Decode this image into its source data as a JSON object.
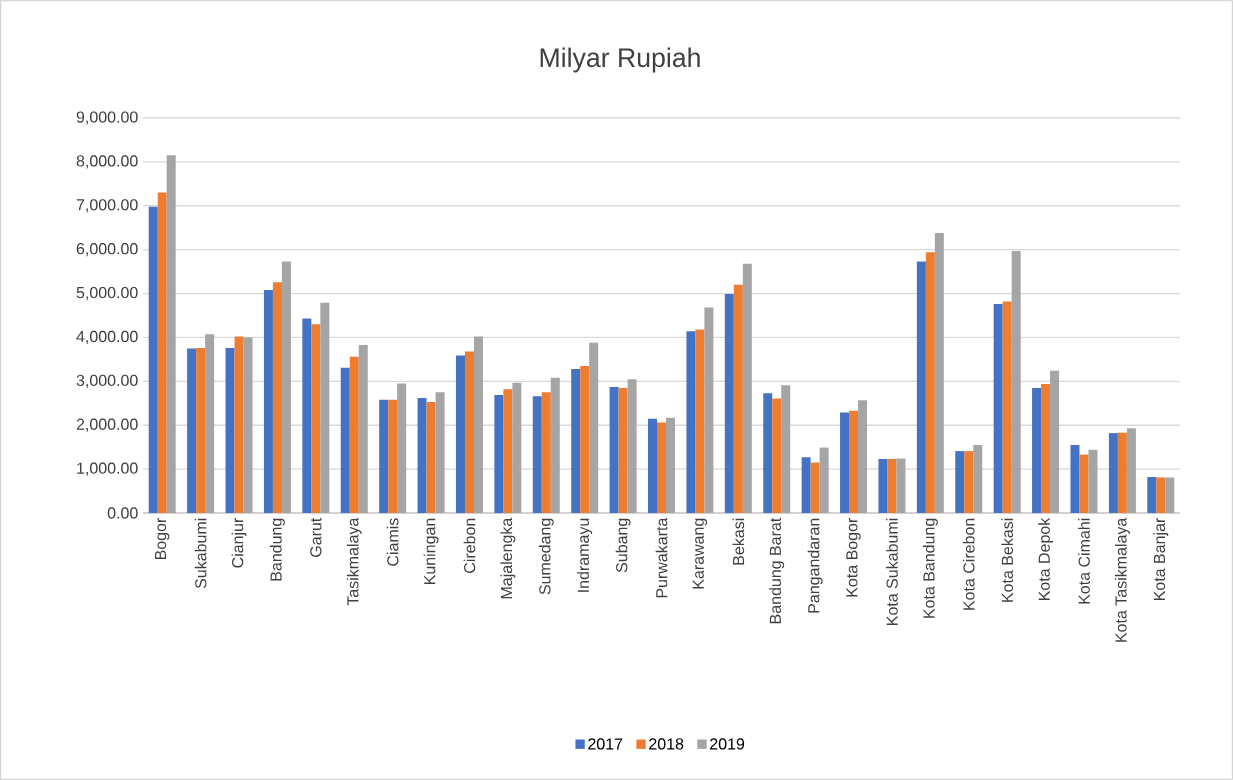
{
  "chart_data": {
    "type": "bar",
    "title": "Milyar Rupiah",
    "categories": [
      "Bogor",
      "Sukabumi",
      "Cianjur",
      "Bandung",
      "Garut",
      "Tasikmalaya",
      "Ciamis",
      "Kuningan",
      "Cirebon",
      "Majalengka",
      "Sumedang",
      "Indramayu",
      "Subang",
      "Purwakarta",
      "Karawang",
      "Bekasi",
      "Bandung Barat",
      "Pangandaran",
      "Kota Bogor",
      "Kota Sukabumi",
      "Kota Bandung",
      "Kota Cirebon",
      "Kota Bekasi",
      "Kota Depok",
      "Kota Cimahi",
      "Kota Tasikmalaya",
      "Kota Banjar"
    ],
    "series": [
      {
        "name": "2017",
        "color": "#4472c4",
        "values": [
          6980,
          3750,
          3760,
          5080,
          4430,
          3310,
          2580,
          2620,
          3590,
          2690,
          2660,
          3280,
          2870,
          2150,
          4140,
          4990,
          2730,
          1270,
          2290,
          1230,
          5730,
          1410,
          4760,
          2850,
          1550,
          1820,
          820
        ]
      },
      {
        "name": "2018",
        "color": "#ed7d31",
        "values": [
          7300,
          3760,
          4020,
          5260,
          4300,
          3560,
          2580,
          2530,
          3680,
          2820,
          2750,
          3350,
          2850,
          2060,
          4180,
          5200,
          2610,
          1150,
          2330,
          1230,
          5940,
          1410,
          4820,
          2940,
          1330,
          1830,
          810
        ]
      },
      {
        "name": "2019",
        "color": "#a5a5a5",
        "values": [
          8150,
          4070,
          4000,
          5730,
          4790,
          3830,
          2950,
          2750,
          4020,
          2970,
          3080,
          3880,
          3050,
          2170,
          4680,
          5680,
          2910,
          1490,
          2570,
          1240,
          6380,
          1550,
          5970,
          3240,
          1440,
          1930,
          810
        ]
      }
    ],
    "ylim": [
      0,
      9000
    ],
    "yticks": [
      {
        "value": 0,
        "label": "0.00"
      },
      {
        "value": 1000,
        "label": "1,000.00"
      },
      {
        "value": 2000,
        "label": "2,000.00"
      },
      {
        "value": 3000,
        "label": "3,000.00"
      },
      {
        "value": 4000,
        "label": "4,000.00"
      },
      {
        "value": 5000,
        "label": "5,000.00"
      },
      {
        "value": 6000,
        "label": "6,000.00"
      },
      {
        "value": 7000,
        "label": "7,000.00"
      },
      {
        "value": 8000,
        "label": "8,000.00"
      },
      {
        "value": 9000,
        "label": "9,000.00"
      }
    ],
    "grid": "y",
    "legend": "bottom"
  }
}
